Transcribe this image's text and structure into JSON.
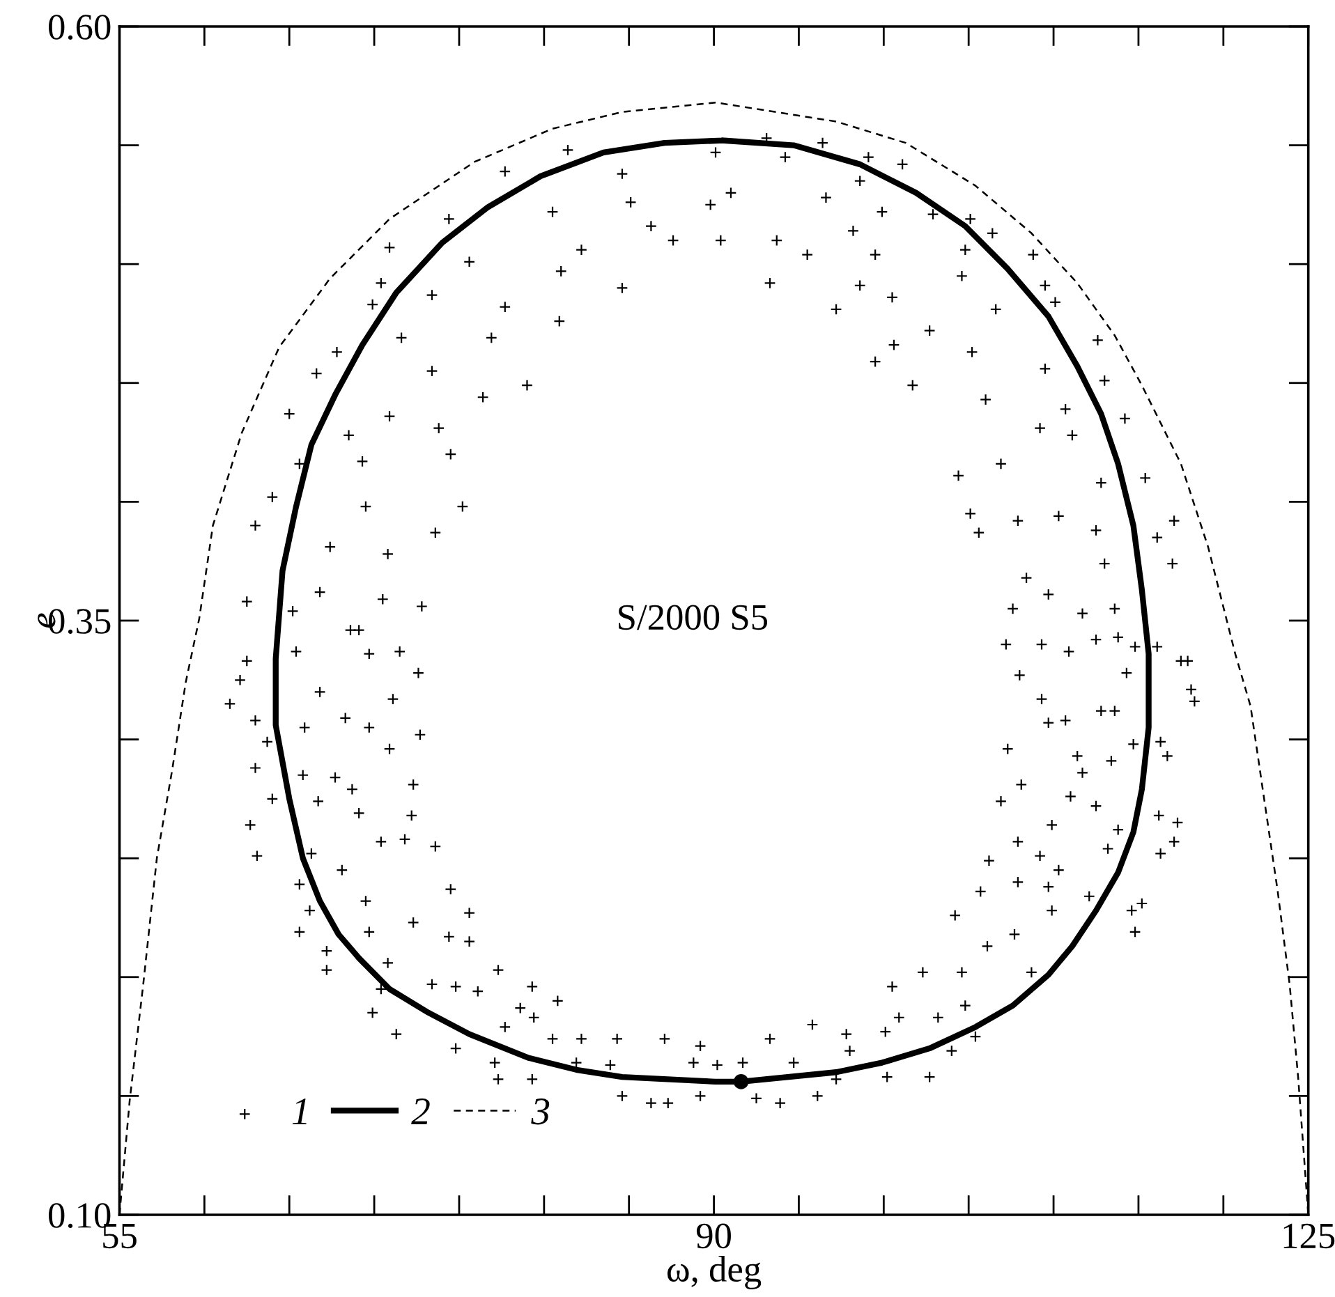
{
  "chart_data": {
    "type": "scatter",
    "xlabel": "ω, deg",
    "ylabel": "e",
    "annotations": [
      "S/2000 S5"
    ],
    "xlim": [
      55,
      125
    ],
    "ylim": [
      0.1,
      0.6
    ],
    "xticks": [
      55,
      {
        "value": 60,
        "label": null
      },
      {
        "value": 65,
        "label": null
      },
      {
        "value": 70,
        "label": null
      },
      {
        "value": 75,
        "label": null
      },
      {
        "value": 80,
        "label": null
      },
      {
        "value": 85,
        "label": null
      },
      90,
      {
        "value": 95,
        "label": null
      },
      {
        "value": 100,
        "label": null
      },
      {
        "value": 105,
        "label": null
      },
      {
        "value": 110,
        "label": null
      },
      {
        "value": 115,
        "label": null
      },
      {
        "value": 120,
        "label": null
      },
      125
    ],
    "yticks": [
      {
        "value": 0.1,
        "label": "0.10"
      },
      {
        "value": 0.15,
        "label": null
      },
      {
        "value": 0.2,
        "label": null
      },
      {
        "value": 0.25,
        "label": null
      },
      {
        "value": 0.3,
        "label": null
      },
      {
        "value": 0.35,
        "label": "0.35"
      },
      {
        "value": 0.4,
        "label": null
      },
      {
        "value": 0.45,
        "label": null
      },
      {
        "value": 0.5,
        "label": null
      },
      {
        "value": 0.55,
        "label": null
      },
      {
        "value": 0.6,
        "label": "0.60"
      }
    ],
    "grid": false,
    "legend": "bottom left",
    "series": [
      {
        "name": "1",
        "marker": "cross",
        "color": "#000000",
        "x": [
          81.4,
          77.7,
          84.6,
          89.8,
          85.1,
          74.4,
          80.5,
          86.3,
          70.9,
          82.2,
          87.6,
          75.6,
          70.4,
          73.4,
          81.0,
          84.6,
          69.9,
          77.7,
          80.9,
          71.6,
          76.9,
          67.8,
          66.6,
          73.4,
          76.4,
          79.0,
          65.0,
          70.9,
          68.5,
          73.8,
          69.3,
          74.5,
          65.6,
          64.0,
          69.5,
          75.2,
          63.0,
          73.6,
          67.4,
          70.8,
          62.5,
          66.8,
          70.5,
          65.2,
          69.1,
          72.8,
          93.1,
          96.4,
          90.1,
          94.2,
          99.1,
          101.1,
          98.6,
          91.0,
          96.6,
          102.9,
          105.1,
          99.9,
          98.2,
          90.4,
          93.7,
          106.4,
          95.5,
          99.5,
          104.8,
          108.8,
          93.3,
          98.6,
          104.6,
          109.5,
          100.5,
          106.6,
          97.2,
          102.7,
          110.1,
          100.6,
          105.2,
          112.6,
          99.5,
          109.5,
          113.0,
          101.7,
          106.0,
          110.7,
          114.2,
          109.2,
          104.4,
          106.9,
          111.1,
          112.8,
          115.4,
          105.1,
          107.9,
          110.3,
          117.1,
          105.6,
          112.5,
          117.0,
          108.4,
          113.0,
          116.1,
          107.6,
          109.7,
          113.6,
          111.7,
          62.5,
          62.1,
          61.5,
          63.0,
          63.7,
          63.0,
          64.0,
          62.7,
          63.1,
          65.4,
          66.8,
          68.6,
          69.7,
          71.5,
          72.6,
          71.1,
          65.9,
          68.3,
          69.7,
          70.9,
          72.7,
          65.8,
          67.7,
          68.7,
          72.3,
          66.7,
          69.1,
          72.2,
          70.4,
          66.3,
          68.1,
          71.8,
          73.6,
          65.6,
          66.2,
          69.5,
          74.5,
          75.6,
          69.7,
          72.3,
          65.6,
          67.2,
          70.8,
          74.4,
          75.6,
          67.2,
          70.4,
          73.4,
          74.8,
          77.3,
          79.3,
          76.1,
          78.6,
          80.8,
          69.9,
          71.3,
          74.8,
          77.7,
          79.4,
          77.1,
          77.3,
          80.5,
          82.2,
          84.3,
          87.1,
          79.3,
          81.9,
          83.9,
          84.6,
          86.3,
          87.3,
          88.8,
          89.2,
          90.2,
          89.2,
          91.7,
          93.3,
          94.7,
          95.8,
          97.8,
          98.0,
          100.1,
          100.9,
          100.5,
          102.3,
          103.2,
          104.8,
          105.4,
          92.5,
          93.9,
          96.1,
          97.2,
          100.2,
          102.7,
          104.0,
          104.2,
          104.6,
          105.7,
          106.2,
          106.9,
          107.3,
          108.1,
          107.9,
          106.1,
          107.9,
          108.7,
          107.7,
          109.2,
          109.7,
          109.9,
          109.9,
          109.3,
          109.7,
          110.7,
          111.0,
          111.7,
          110.3,
          112.1,
          112.5,
          113.4,
          113.6,
          113.2,
          113.8,
          114.6,
          114.8,
          115.2,
          114.7,
          116.3,
          116.7,
          116.2,
          116.3,
          117.1,
          117.3,
          117.5,
          117.9,
          118.1,
          118.3,
          116.1,
          114.8,
          113.8,
          114.3,
          112.5,
          110.9,
          109.3,
          108.0,
          107.2,
          112.8,
          111.4
        ],
        "values": [
          0.548,
          0.539,
          0.538,
          0.525,
          0.526,
          0.519,
          0.522,
          0.516,
          0.507,
          0.506,
          0.51,
          0.501,
          0.492,
          0.487,
          0.497,
          0.49,
          0.483,
          0.482,
          0.476,
          0.469,
          0.469,
          0.463,
          0.454,
          0.455,
          0.444,
          0.449,
          0.437,
          0.436,
          0.428,
          0.431,
          0.417,
          0.42,
          0.416,
          0.402,
          0.398,
          0.398,
          0.39,
          0.387,
          0.381,
          0.378,
          0.358,
          0.362,
          0.359,
          0.354,
          0.346,
          0.356,
          0.553,
          0.551,
          0.547,
          0.545,
          0.545,
          0.542,
          0.535,
          0.53,
          0.528,
          0.521,
          0.519,
          0.522,
          0.514,
          0.51,
          0.51,
          0.513,
          0.504,
          0.504,
          0.506,
          0.504,
          0.492,
          0.491,
          0.495,
          0.491,
          0.486,
          0.481,
          0.481,
          0.472,
          0.484,
          0.466,
          0.463,
          0.468,
          0.459,
          0.456,
          0.451,
          0.449,
          0.443,
          0.439,
          0.435,
          0.431,
          0.411,
          0.416,
          0.428,
          0.408,
          0.41,
          0.395,
          0.392,
          0.394,
          0.392,
          0.387,
          0.388,
          0.374,
          0.368,
          0.374,
          0.385,
          0.355,
          0.361,
          0.355,
          0.353,
          0.333,
          0.325,
          0.315,
          0.308,
          0.299,
          0.288,
          0.275,
          0.264,
          0.251,
          0.337,
          0.32,
          0.346,
          0.336,
          0.337,
          0.328,
          0.317,
          0.305,
          0.309,
          0.305,
          0.296,
          0.302,
          0.285,
          0.284,
          0.279,
          0.281,
          0.274,
          0.269,
          0.268,
          0.257,
          0.252,
          0.245,
          0.258,
          0.255,
          0.239,
          0.228,
          0.232,
          0.237,
          0.227,
          0.219,
          0.223,
          0.219,
          0.211,
          0.206,
          0.217,
          0.215,
          0.203,
          0.195,
          0.197,
          0.196,
          0.203,
          0.196,
          0.194,
          0.187,
          0.19,
          0.185,
          0.176,
          0.17,
          0.179,
          0.183,
          0.164,
          0.157,
          0.174,
          0.174,
          0.174,
          0.174,
          0.157,
          0.164,
          0.163,
          0.15,
          0.147,
          0.147,
          0.164,
          0.171,
          0.163,
          0.15,
          0.164,
          0.174,
          0.164,
          0.18,
          0.176,
          0.169,
          0.177,
          0.183,
          0.196,
          0.202,
          0.183,
          0.188,
          0.175,
          0.149,
          0.147,
          0.15,
          0.157,
          0.158,
          0.158,
          0.169,
          0.226,
          0.202,
          0.236,
          0.249,
          0.274,
          0.296,
          0.281,
          0.257,
          0.213,
          0.24,
          0.202,
          0.218,
          0.251,
          0.238,
          0.264,
          0.228,
          0.317,
          0.307,
          0.308,
          0.276,
          0.286,
          0.245,
          0.234,
          0.272,
          0.291,
          0.312,
          0.254,
          0.262,
          0.228,
          0.219,
          0.231,
          0.298,
          0.299,
          0.293,
          0.268,
          0.252,
          0.257,
          0.265,
          0.333,
          0.333,
          0.321,
          0.316,
          0.339,
          0.339,
          0.343,
          0.328,
          0.342,
          0.337,
          0.34,
          0.327,
          0.34,
          0.312,
          0.293
        ]
      },
      {
        "name": "2",
        "type": "line",
        "line_style": "solid",
        "color": "#000000",
        "x": [
          90.6,
          94.7,
          98.6,
          101.9,
          104.8,
          107.3,
          109.7,
          111.4,
          112.8,
          113.8,
          114.7,
          115.2,
          115.6,
          115.6,
          115.2,
          114.7,
          113.8,
          112.5,
          111.1,
          109.7,
          107.6,
          105.4,
          102.7,
          99.9,
          97.2,
          91.6,
          90.1,
          84.6,
          81.9,
          79.1,
          75.6,
          73.2,
          70.9,
          69.1,
          67.9,
          66.8,
          65.8,
          65.0,
          64.2,
          64.2,
          64.6,
          65.4,
          66.3,
          67.7,
          69.3,
          71.3,
          74.0,
          76.7,
          79.8,
          83.5,
          87.1,
          90.4
        ],
        "values": [
          0.552,
          0.55,
          0.542,
          0.53,
          0.516,
          0.498,
          0.478,
          0.457,
          0.437,
          0.416,
          0.39,
          0.363,
          0.336,
          0.305,
          0.279,
          0.261,
          0.244,
          0.228,
          0.213,
          0.201,
          0.188,
          0.179,
          0.17,
          0.164,
          0.16,
          0.156,
          0.156,
          0.158,
          0.161,
          0.166,
          0.176,
          0.185,
          0.195,
          0.208,
          0.218,
          0.232,
          0.25,
          0.275,
          0.306,
          0.334,
          0.371,
          0.398,
          0.424,
          0.445,
          0.466,
          0.488,
          0.509,
          0.524,
          0.537,
          0.547,
          0.551,
          0.552
        ]
      },
      {
        "name": "3",
        "type": "line",
        "line_style": "dashed",
        "color": "#000000",
        "x": [
          55.0,
          55.6,
          56.4,
          57.2,
          58.1,
          58.9,
          59.7,
          60.5,
          62.2,
          64.4,
          67.4,
          70.9,
          75.9,
          80.5,
          84.6,
          90.1,
          97.2,
          101.3,
          105.4,
          108.7,
          111.4,
          113.6,
          115.2,
          117.5,
          119.1,
          120.7,
          121.6,
          122.4,
          123.2,
          123.9,
          124.4,
          125.0
        ],
        "values": [
          0.1,
          0.148,
          0.197,
          0.25,
          0.287,
          0.324,
          0.351,
          0.39,
          0.429,
          0.465,
          0.494,
          0.519,
          0.543,
          0.557,
          0.564,
          0.568,
          0.56,
          0.551,
          0.533,
          0.513,
          0.492,
          0.47,
          0.449,
          0.416,
          0.381,
          0.336,
          0.314,
          0.275,
          0.236,
          0.197,
          0.158,
          0.1
        ]
      },
      {
        "marker": "circle",
        "color": "#000000",
        "x": [
          91.6
        ],
        "values": [
          0.156
        ]
      }
    ]
  }
}
